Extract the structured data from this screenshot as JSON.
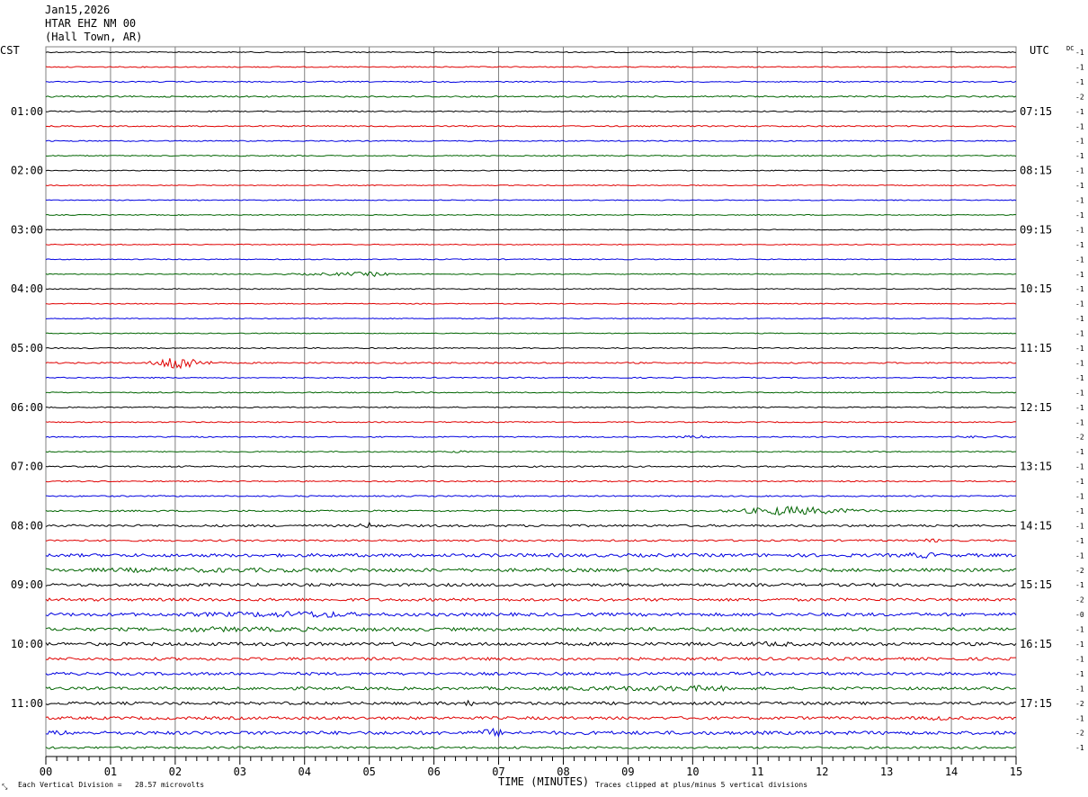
{
  "header": {
    "date": "Jan15,2026",
    "station": "HTAR EHZ NM 00",
    "location": "(Hall Town, AR)"
  },
  "left_axis_label": "CST",
  "right_axis_label": "UTC",
  "dc_label": "DC",
  "footer": {
    "scale_note": "Each Vertical Division =   28.57 microvolts",
    "x_title": "TIME (MINUTES)",
    "clip_note": "Traces clipped at plus/minus 5 vertical divisions"
  },
  "colors": {
    "trace_cycle": [
      "#000000",
      "#e00000",
      "#0000e0",
      "#006400"
    ],
    "grid": "#808080",
    "background": "#ffffff"
  },
  "chart_data": {
    "type": "line",
    "subtype": "helicorder",
    "x_ticks": [
      "00",
      "01",
      "02",
      "03",
      "04",
      "05",
      "06",
      "07",
      "08",
      "09",
      "10",
      "11",
      "12",
      "13",
      "14",
      "15"
    ],
    "xlim": [
      0,
      15
    ],
    "rows_per_hour": 4,
    "row_count": 48,
    "left_hour_labels": [
      "01:00",
      "02:00",
      "03:00",
      "04:00",
      "05:00",
      "06:00",
      "07:00",
      "08:00",
      "09:00",
      "10:00",
      "11:00"
    ],
    "right_hour_labels": [
      "07:15",
      "08:15",
      "09:15",
      "10:15",
      "11:15",
      "12:15",
      "13:15",
      "14:15",
      "15:15",
      "16:15",
      "17:15"
    ],
    "dc_offsets": [
      "-1",
      "-1",
      "-1",
      "-2",
      "-1",
      "-1",
      "-1",
      "-1",
      "-1",
      "-1",
      "-1",
      "-1",
      "-1",
      "-1",
      "-1",
      "-1",
      "-1",
      "-1",
      "-1",
      "-1",
      "-1",
      "-1",
      "-1",
      "-1",
      "-1",
      "-1",
      "-2",
      "-1",
      "-1",
      "-1",
      "-1",
      "-1",
      "-1",
      "-1",
      "-1",
      "-2",
      "-1",
      "-2",
      "-0",
      "-1",
      "-1",
      "-1",
      "-1",
      "-1",
      "-2",
      "-1",
      "-2",
      "-1"
    ],
    "noise_levels": [
      0.6,
      0.6,
      0.6,
      0.8,
      0.6,
      0.7,
      0.6,
      0.6,
      0.5,
      0.5,
      0.5,
      0.5,
      0.5,
      0.5,
      0.5,
      0.5,
      0.5,
      0.5,
      0.5,
      0.5,
      0.6,
      0.8,
      0.6,
      0.6,
      0.6,
      0.6,
      0.6,
      0.6,
      0.8,
      0.7,
      0.7,
      0.9,
      1.2,
      1.0,
      1.8,
      1.8,
      1.6,
      1.6,
      1.8,
      1.8,
      1.8,
      1.6,
      1.6,
      1.6,
      1.6,
      1.6,
      1.9,
      1.2
    ],
    "events": [
      {
        "row": 15,
        "start_min": 3.3,
        "end_min": 5.5,
        "peak_min": 5.1,
        "amplitude": 2.6
      },
      {
        "row": 21,
        "start_min": 1.5,
        "end_min": 2.7,
        "peak_min": 2.0,
        "amplitude": 9.5
      },
      {
        "row": 26,
        "start_min": 9.5,
        "end_min": 10.6,
        "peak_min": 10.1,
        "amplitude": 1.8
      },
      {
        "row": 26,
        "start_min": 13.8,
        "end_min": 15.0,
        "peak_min": 14.6,
        "amplitude": 1.6
      },
      {
        "row": 27,
        "start_min": 6.2,
        "end_min": 6.6,
        "peak_min": 6.4,
        "amplitude": 1.6
      },
      {
        "row": 31,
        "start_min": 10.3,
        "end_min": 13.2,
        "peak_min": 11.4,
        "amplitude": 5.5
      },
      {
        "row": 32,
        "start_min": 4.7,
        "end_min": 5.3,
        "peak_min": 5.0,
        "amplitude": 3.5
      },
      {
        "row": 33,
        "start_min": 13.5,
        "end_min": 13.9,
        "peak_min": 13.7,
        "amplitude": 2.5
      },
      {
        "row": 34,
        "start_min": 13.0,
        "end_min": 14.0,
        "peak_min": 13.6,
        "amplitude": 3.5
      },
      {
        "row": 35,
        "start_min": 0.3,
        "end_min": 7.0,
        "peak_min": 1.5,
        "amplitude": 2.8
      },
      {
        "row": 36,
        "start_min": 6.9,
        "end_min": 7.2,
        "peak_min": 7.0,
        "amplitude": 3.2
      },
      {
        "row": 38,
        "start_min": 1.5,
        "end_min": 5.0,
        "peak_min": 4.3,
        "amplitude": 4.0
      },
      {
        "row": 39,
        "start_min": 1.8,
        "end_min": 6.5,
        "peak_min": 2.2,
        "amplitude": 3.0
      },
      {
        "row": 40,
        "start_min": 10.5,
        "end_min": 11.8,
        "peak_min": 11.3,
        "amplitude": 3.0
      },
      {
        "row": 43,
        "start_min": 7.0,
        "end_min": 10.6,
        "peak_min": 10.4,
        "amplitude": 3.5
      },
      {
        "row": 44,
        "start_min": 6.3,
        "end_min": 6.7,
        "peak_min": 6.5,
        "amplitude": 4.0
      },
      {
        "row": 45,
        "start_min": 13.5,
        "end_min": 14.1,
        "peak_min": 13.8,
        "amplitude": 3.0
      },
      {
        "row": 46,
        "start_min": 6.6,
        "end_min": 7.2,
        "peak_min": 6.9,
        "amplitude": 5.5
      },
      {
        "row": 46,
        "start_min": 0.0,
        "end_min": 0.5,
        "peak_min": 0.2,
        "amplitude": 3.0
      }
    ]
  }
}
